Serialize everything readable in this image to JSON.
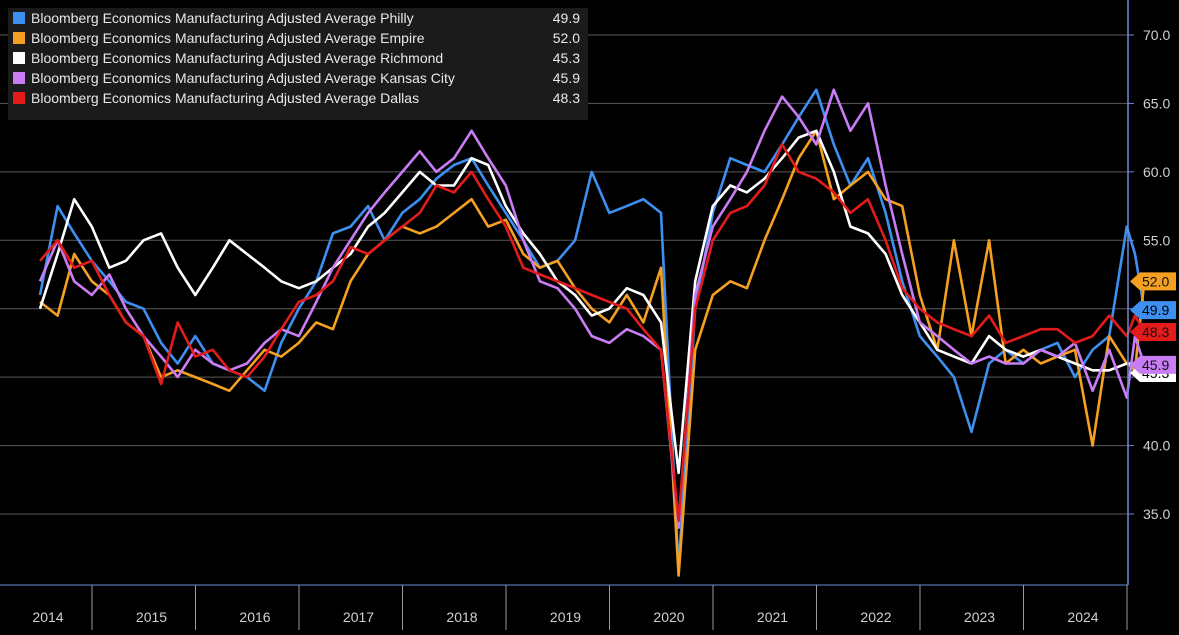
{
  "chart_data": {
    "type": "line",
    "ylim": [
      30,
      72
    ],
    "yticks": [
      "35.0",
      "40.0",
      "45.0",
      "50.0",
      "55.0",
      "60.0",
      "65.0",
      "70.0"
    ],
    "xlabels": [
      "2014",
      "2015",
      "2016",
      "2017",
      "2018",
      "2019",
      "2020",
      "2021",
      "2022",
      "2023",
      "2024"
    ],
    "grid": true,
    "legend_position": "top-left",
    "series": [
      {
        "name": "Bloomberg Economics Manufacturing Adjusted Average Philly",
        "last": "49.9",
        "color": "#3d8ff0",
        "x": [
          2014.0,
          2014.17,
          2014.33,
          2014.5,
          2014.67,
          2014.83,
          2015.0,
          2015.17,
          2015.33,
          2015.5,
          2015.67,
          2015.83,
          2016.0,
          2016.17,
          2016.33,
          2016.5,
          2016.67,
          2016.83,
          2017.0,
          2017.17,
          2017.33,
          2017.5,
          2017.67,
          2017.83,
          2018.0,
          2018.17,
          2018.33,
          2018.5,
          2018.67,
          2018.83,
          2019.0,
          2019.17,
          2019.33,
          2019.5,
          2019.67,
          2019.83,
          2020.0,
          2020.17,
          2020.33,
          2020.5,
          2020.67,
          2020.83,
          2021.0,
          2021.17,
          2021.33,
          2021.5,
          2021.67,
          2021.83,
          2022.0,
          2022.17,
          2022.33,
          2022.5,
          2022.67,
          2022.83,
          2023.0,
          2023.17,
          2023.33,
          2023.5,
          2023.67,
          2023.83,
          2024.0,
          2024.17,
          2024.33,
          2024.5,
          2024.58,
          2024.67
        ],
        "values": [
          51.0,
          57.5,
          55.5,
          53.5,
          52.0,
          50.5,
          50.0,
          47.5,
          46.0,
          48.0,
          46.0,
          45.5,
          45.0,
          44.0,
          47.5,
          50.0,
          52.0,
          55.5,
          56.0,
          57.5,
          55.0,
          57.0,
          58.0,
          59.5,
          60.5,
          61.0,
          59.0,
          57.0,
          55.0,
          53.0,
          53.5,
          55.0,
          60.0,
          57.0,
          57.5,
          58.0,
          57.0,
          31.0,
          50.0,
          57.0,
          61.0,
          60.5,
          60.0,
          62.0,
          64.0,
          66.0,
          62.0,
          59.0,
          61.0,
          57.0,
          52.0,
          48.0,
          46.5,
          45.0,
          41.0,
          46.0,
          47.0,
          46.0,
          47.0,
          47.5,
          45.0,
          47.0,
          48.0,
          56.0,
          54.0,
          49.9
        ]
      },
      {
        "name": "Bloomberg Economics Manufacturing Adjusted Average Empire",
        "last": "52.0",
        "color": "#f5a020",
        "x": [
          2014.0,
          2014.17,
          2014.33,
          2014.5,
          2014.67,
          2014.83,
          2015.0,
          2015.17,
          2015.33,
          2015.5,
          2015.67,
          2015.83,
          2016.0,
          2016.17,
          2016.33,
          2016.5,
          2016.67,
          2016.83,
          2017.0,
          2017.17,
          2017.33,
          2017.5,
          2017.67,
          2017.83,
          2018.0,
          2018.17,
          2018.33,
          2018.5,
          2018.67,
          2018.83,
          2019.0,
          2019.17,
          2019.33,
          2019.5,
          2019.67,
          2019.83,
          2020.0,
          2020.17,
          2020.33,
          2020.5,
          2020.67,
          2020.83,
          2021.0,
          2021.17,
          2021.33,
          2021.5,
          2021.67,
          2021.83,
          2022.0,
          2022.17,
          2022.33,
          2022.5,
          2022.67,
          2022.83,
          2023.0,
          2023.17,
          2023.33,
          2023.5,
          2023.67,
          2023.83,
          2024.0,
          2024.17,
          2024.33,
          2024.5,
          2024.58,
          2024.67
        ],
        "values": [
          50.5,
          49.5,
          54.0,
          52.0,
          51.0,
          49.0,
          48.0,
          45.0,
          45.5,
          45.0,
          44.5,
          44.0,
          45.5,
          47.0,
          46.5,
          47.5,
          49.0,
          48.5,
          52.0,
          54.0,
          55.0,
          56.0,
          55.5,
          56.0,
          57.0,
          58.0,
          56.0,
          56.5,
          54.0,
          53.0,
          53.5,
          51.5,
          50.0,
          49.0,
          51.0,
          49.0,
          53.0,
          30.5,
          47.0,
          51.0,
          52.0,
          51.5,
          55.0,
          58.0,
          61.0,
          63.0,
          58.0,
          59.0,
          60.0,
          58.0,
          57.5,
          51.0,
          47.0,
          55.0,
          48.0,
          55.0,
          46.0,
          47.0,
          46.0,
          46.5,
          47.0,
          40.0,
          48.0,
          46.0,
          45.5,
          52.0
        ]
      },
      {
        "name": "Bloomberg Economics Manufacturing Adjusted Average Richmond",
        "last": "45.3",
        "color": "#ffffff",
        "x": [
          2014.0,
          2014.17,
          2014.33,
          2014.5,
          2014.67,
          2014.83,
          2015.0,
          2015.17,
          2015.33,
          2015.5,
          2015.67,
          2015.83,
          2016.0,
          2016.17,
          2016.33,
          2016.5,
          2016.67,
          2016.83,
          2017.0,
          2017.17,
          2017.33,
          2017.5,
          2017.67,
          2017.83,
          2018.0,
          2018.17,
          2018.33,
          2018.5,
          2018.67,
          2018.83,
          2019.0,
          2019.17,
          2019.33,
          2019.5,
          2019.67,
          2019.83,
          2020.0,
          2020.17,
          2020.33,
          2020.5,
          2020.67,
          2020.83,
          2021.0,
          2021.17,
          2021.33,
          2021.5,
          2021.67,
          2021.83,
          2022.0,
          2022.17,
          2022.33,
          2022.5,
          2022.67,
          2022.83,
          2023.0,
          2023.17,
          2023.33,
          2023.5,
          2023.67,
          2023.83,
          2024.0,
          2024.17,
          2024.33,
          2024.5,
          2024.58,
          2024.67
        ],
        "values": [
          50.0,
          54.0,
          58.0,
          56.0,
          53.0,
          53.5,
          55.0,
          55.5,
          53.0,
          51.0,
          53.0,
          55.0,
          54.0,
          53.0,
          52.0,
          51.5,
          52.0,
          53.0,
          54.0,
          56.0,
          57.0,
          58.5,
          60.0,
          59.0,
          59.0,
          61.0,
          60.5,
          57.5,
          55.5,
          54.0,
          52.0,
          51.0,
          49.5,
          50.0,
          51.5,
          51.0,
          49.0,
          38.0,
          52.0,
          57.5,
          59.0,
          58.5,
          59.5,
          61.0,
          62.5,
          63.0,
          60.0,
          56.0,
          55.5,
          54.0,
          51.0,
          49.0,
          47.0,
          46.5,
          46.0,
          48.0,
          47.0,
          46.5,
          47.0,
          46.5,
          46.0,
          45.5,
          45.5,
          46.0,
          46.0,
          45.3
        ]
      },
      {
        "name": "Bloomberg Economics Manufacturing Adjusted Average Kansas City",
        "last": "45.9",
        "color": "#c97df5",
        "x": [
          2014.0,
          2014.17,
          2014.33,
          2014.5,
          2014.67,
          2014.83,
          2015.0,
          2015.17,
          2015.33,
          2015.5,
          2015.67,
          2015.83,
          2016.0,
          2016.17,
          2016.33,
          2016.5,
          2016.67,
          2016.83,
          2017.0,
          2017.17,
          2017.33,
          2017.5,
          2017.67,
          2017.83,
          2018.0,
          2018.17,
          2018.33,
          2018.5,
          2018.67,
          2018.83,
          2019.0,
          2019.17,
          2019.33,
          2019.5,
          2019.67,
          2019.83,
          2020.0,
          2020.17,
          2020.33,
          2020.5,
          2020.67,
          2020.83,
          2021.0,
          2021.17,
          2021.33,
          2021.5,
          2021.67,
          2021.83,
          2022.0,
          2022.17,
          2022.33,
          2022.5,
          2022.67,
          2022.83,
          2023.0,
          2023.17,
          2023.33,
          2023.5,
          2023.67,
          2023.83,
          2024.0,
          2024.17,
          2024.33,
          2024.5,
          2024.58,
          2024.67
        ],
        "values": [
          52.0,
          55.0,
          52.0,
          51.0,
          52.5,
          50.0,
          48.0,
          46.5,
          45.0,
          47.0,
          46.0,
          45.5,
          46.0,
          47.5,
          48.5,
          48.0,
          50.5,
          53.0,
          55.0,
          57.0,
          58.5,
          60.0,
          61.5,
          60.0,
          61.0,
          63.0,
          61.0,
          59.0,
          55.0,
          52.0,
          51.5,
          50.0,
          48.0,
          47.5,
          48.5,
          48.0,
          47.0,
          34.0,
          51.0,
          56.0,
          58.0,
          60.0,
          63.0,
          65.5,
          64.0,
          62.0,
          66.0,
          63.0,
          65.0,
          59.0,
          54.0,
          49.0,
          48.0,
          47.0,
          46.0,
          46.5,
          46.0,
          46.0,
          47.0,
          46.5,
          47.5,
          44.0,
          47.0,
          43.5,
          48.0,
          45.9
        ]
      },
      {
        "name": "Bloomberg Economics Manufacturing Adjusted Average Dallas",
        "last": "48.3",
        "color": "#e41b1b",
        "x": [
          2014.0,
          2014.17,
          2014.33,
          2014.5,
          2014.67,
          2014.83,
          2015.0,
          2015.17,
          2015.33,
          2015.5,
          2015.67,
          2015.83,
          2016.0,
          2016.17,
          2016.33,
          2016.5,
          2016.67,
          2016.83,
          2017.0,
          2017.17,
          2017.33,
          2017.5,
          2017.67,
          2017.83,
          2018.0,
          2018.17,
          2018.33,
          2018.5,
          2018.67,
          2018.83,
          2019.0,
          2019.17,
          2019.33,
          2019.5,
          2019.67,
          2019.83,
          2020.0,
          2020.17,
          2020.33,
          2020.5,
          2020.67,
          2020.83,
          2021.0,
          2021.17,
          2021.33,
          2021.5,
          2021.67,
          2021.83,
          2022.0,
          2022.17,
          2022.33,
          2022.5,
          2022.67,
          2022.83,
          2023.0,
          2023.17,
          2023.33,
          2023.5,
          2023.67,
          2023.83,
          2024.0,
          2024.17,
          2024.33,
          2024.5,
          2024.58,
          2024.67
        ],
        "values": [
          53.5,
          55.0,
          53.0,
          53.5,
          51.0,
          49.0,
          48.0,
          44.5,
          49.0,
          46.5,
          47.0,
          45.5,
          45.0,
          46.5,
          48.5,
          50.5,
          51.0,
          52.0,
          54.5,
          54.0,
          55.0,
          56.0,
          57.0,
          59.0,
          58.5,
          60.0,
          58.0,
          56.0,
          53.0,
          52.5,
          52.0,
          51.5,
          51.0,
          50.5,
          50.0,
          48.5,
          47.0,
          34.5,
          50.0,
          55.0,
          57.0,
          57.5,
          59.0,
          62.0,
          60.0,
          59.5,
          58.5,
          57.0,
          58.0,
          55.0,
          51.5,
          50.0,
          49.0,
          48.5,
          48.0,
          49.5,
          47.5,
          48.0,
          48.5,
          48.5,
          47.5,
          48.0,
          49.5,
          48.0,
          49.5,
          48.3
        ]
      }
    ]
  }
}
